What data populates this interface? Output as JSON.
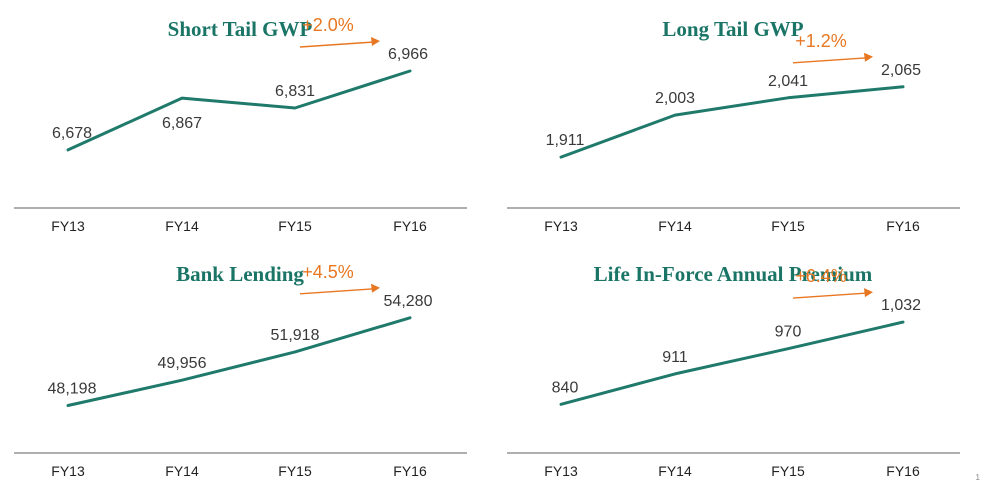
{
  "colors": {
    "line": "#1f7a6b",
    "title": "#1a7566",
    "growth": "#e87722",
    "axis": "#7f7f7f",
    "label": "#3a3a3a"
  },
  "page_number": "1",
  "chart_data": [
    {
      "type": "line",
      "title": "Short Tail GWP",
      "categories": [
        "FY13",
        "FY14",
        "FY15",
        "FY16"
      ],
      "values": [
        6678,
        6867,
        6831,
        6966
      ],
      "labels": [
        "6,678",
        "6,867",
        "6,831",
        "6,966"
      ],
      "growth": "+2.0%",
      "ylim": [
        6550,
        7050
      ]
    },
    {
      "type": "line",
      "title": "Long Tail GWP",
      "categories": [
        "FY13",
        "FY14",
        "FY15",
        "FY16"
      ],
      "values": [
        1911,
        2003,
        2041,
        2065
      ],
      "labels": [
        "1,911",
        "2,003",
        "2,041",
        "2,065"
      ],
      "growth": "+1.2%",
      "ylim": [
        1850,
        2150
      ]
    },
    {
      "type": "line",
      "title": "Bank Lending",
      "categories": [
        "FY13",
        "FY14",
        "FY15",
        "FY16"
      ],
      "values": [
        48198,
        49956,
        51918,
        54280
      ],
      "labels": [
        "48,198",
        "49,956",
        "51,918",
        "54,280"
      ],
      "growth": "+4.5%",
      "ylim": [
        46500,
        56000
      ]
    },
    {
      "type": "line",
      "title": "Life In-Force Annual Premium",
      "categories": [
        "FY13",
        "FY14",
        "FY15",
        "FY16"
      ],
      "values": [
        840,
        911,
        970,
        1032
      ],
      "labels": [
        "840",
        "911",
        "970",
        "1,032"
      ],
      "growth": "+6.4%",
      "ylim": [
        780,
        1100
      ]
    }
  ]
}
